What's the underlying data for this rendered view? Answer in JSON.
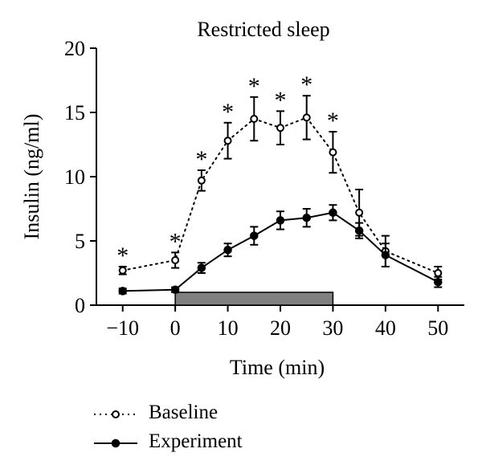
{
  "chart_data": {
    "type": "line",
    "title": "Restricted sleep",
    "xlabel": "Time (min)",
    "ylabel": "Insulin (ng/ml)",
    "xlim": [
      -15,
      55
    ],
    "ylim": [
      0,
      20
    ],
    "xticks": [
      -10,
      0,
      10,
      20,
      30,
      40,
      50
    ],
    "xtick_labels": [
      "−10",
      "0",
      "10",
      "20",
      "30",
      "40",
      "50"
    ],
    "yticks": [
      0,
      5,
      10,
      15,
      20
    ],
    "ytick_labels": [
      "0",
      "5",
      "10",
      "15",
      "20"
    ],
    "grid": false,
    "legend_position": "bottom-left",
    "shaded_bar": {
      "x_start": 0,
      "x_end": 30,
      "y_low": 0,
      "y_high": 1.0,
      "color": "#808080"
    },
    "significance_marker": "*",
    "significant_x": [
      -10,
      0,
      5,
      10,
      15,
      20,
      25,
      30
    ],
    "series": [
      {
        "name": "Baseline",
        "style": "dotted-open",
        "x": [
          -10,
          0,
          5,
          10,
          15,
          20,
          25,
          30,
          35,
          40,
          50
        ],
        "y": [
          2.7,
          3.5,
          9.7,
          12.8,
          14.5,
          13.8,
          14.6,
          11.9,
          7.2,
          4.2,
          2.5
        ],
        "err": [
          0.3,
          0.6,
          0.8,
          1.4,
          1.7,
          1.3,
          1.7,
          1.6,
          1.8,
          1.2,
          0.5
        ]
      },
      {
        "name": "Experiment",
        "style": "solid-filled",
        "x": [
          -10,
          0,
          5,
          10,
          15,
          20,
          25,
          30,
          35,
          40,
          50
        ],
        "y": [
          1.1,
          1.2,
          2.9,
          4.3,
          5.4,
          6.6,
          6.8,
          7.2,
          5.8,
          3.9,
          1.8
        ],
        "err": [
          0.2,
          0.2,
          0.4,
          0.5,
          0.7,
          0.7,
          0.7,
          0.6,
          0.6,
          0.9,
          0.4
        ]
      }
    ],
    "colors": {
      "line": "#000000",
      "bar_fill": "#808080"
    }
  }
}
